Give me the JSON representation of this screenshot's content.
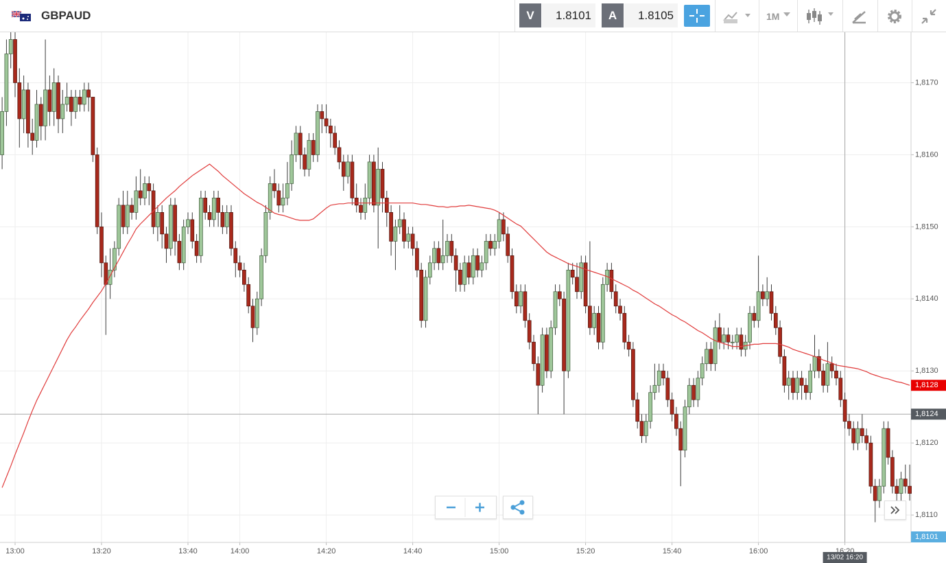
{
  "header": {
    "symbol": "GBPAUD",
    "sell": {
      "label": "V",
      "price": 1.8101
    },
    "buy": {
      "label": "A",
      "price": 1.8105
    },
    "timeframe": "1M"
  },
  "chart_data": {
    "type": "candlestick",
    "categories": [
      null,
      null,
      null,
      "13:00",
      null,
      null,
      null,
      null,
      null,
      null,
      null,
      null,
      null,
      null,
      null,
      null,
      null,
      null,
      null,
      null,
      null,
      null,
      null,
      "13:20",
      null,
      null,
      null,
      null,
      null,
      null,
      null,
      null,
      null,
      null,
      null,
      null,
      null,
      null,
      null,
      null,
      null,
      null,
      null,
      "13:40",
      null,
      null,
      null,
      null,
      null,
      null,
      null,
      null,
      null,
      null,
      null,
      "14:00",
      null,
      null,
      null,
      null,
      null,
      null,
      null,
      null,
      null,
      null,
      null,
      null,
      null,
      null,
      null,
      null,
      null,
      null,
      null,
      "14:20",
      null,
      null,
      null,
      null,
      null,
      null,
      null,
      null,
      null,
      null,
      null,
      null,
      null,
      null,
      null,
      null,
      null,
      null,
      null,
      "14:40",
      null,
      null,
      null,
      null,
      null,
      null,
      null,
      null,
      null,
      null,
      null,
      null,
      null,
      null,
      null,
      null,
      null,
      null,
      null,
      "15:00",
      null,
      null,
      null,
      null,
      null,
      null,
      null,
      null,
      null,
      null,
      null,
      null,
      null,
      null,
      null,
      null,
      null,
      null,
      null,
      "15:20",
      null,
      null,
      null,
      null,
      null,
      null,
      null,
      null,
      null,
      null,
      null,
      null,
      null,
      null,
      null,
      null,
      null,
      null,
      null,
      "15:40",
      null,
      null,
      null,
      null,
      null,
      null,
      null,
      null,
      null,
      null,
      null,
      null,
      null,
      null,
      null,
      null,
      null,
      null,
      null,
      "16:00",
      null,
      null,
      null,
      null,
      null,
      null,
      null,
      null,
      null,
      null,
      null,
      null,
      null,
      null,
      null,
      null,
      null,
      null,
      null,
      "16:20",
      null,
      null,
      null,
      null,
      null,
      null,
      null,
      null,
      null,
      null,
      null,
      null,
      null,
      null,
      null
    ],
    "open": [
      1.816,
      1.8166,
      1.8174,
      1.8176,
      1.817,
      1.8165,
      1.8169,
      1.8163,
      1.8162,
      1.8167,
      1.8164,
      1.8169,
      1.8166,
      1.817,
      1.8165,
      1.8167,
      1.8168,
      1.8166,
      1.8168,
      1.8167,
      1.8169,
      1.8168,
      1.816,
      1.815,
      1.8145,
      1.8142,
      1.8144,
      1.8147,
      1.8153,
      1.815,
      1.8153,
      1.8152,
      1.8155,
      1.8154,
      1.8156,
      1.8155,
      1.815,
      1.8152,
      1.8149,
      1.8147,
      1.8153,
      1.8148,
      1.8145,
      1.815,
      1.8151,
      1.8148,
      1.8146,
      1.8154,
      1.8152,
      1.8151,
      1.8154,
      1.8152,
      1.815,
      1.8152,
      1.8147,
      1.8145,
      1.8144,
      1.8142,
      1.8139,
      1.8136,
      1.814,
      1.8146,
      1.8152,
      1.8156,
      1.8155,
      1.8153,
      1.8154,
      1.8156,
      1.816,
      1.8163,
      1.816,
      1.8158,
      1.8162,
      1.816,
      1.8166,
      1.8165,
      1.8164,
      1.8163,
      1.8161,
      1.8159,
      1.8157,
      1.8159,
      1.8154,
      1.8153,
      1.8152,
      1.8154,
      1.8159,
      1.8153,
      1.8158,
      1.8154,
      1.8152,
      1.8148,
      1.815,
      1.8151,
      1.8148,
      1.8149,
      1.8147,
      1.8144,
      1.8137,
      1.8143,
      1.8145,
      1.8147,
      1.8145,
      1.8146,
      1.8148,
      1.8146,
      1.8144,
      1.8142,
      1.8145,
      1.8143,
      1.8146,
      1.8144,
      1.8145,
      1.8148,
      1.8147,
      1.8148,
      1.8151,
      1.8149,
      1.8146,
      1.8141,
      1.8139,
      1.8141,
      1.8137,
      1.8134,
      1.8131,
      1.8128,
      1.8135,
      1.813,
      1.8136,
      1.8141,
      1.814,
      1.813,
      1.8144,
      1.8143,
      1.8141,
      1.8145,
      1.8139,
      1.8136,
      1.8138,
      1.8134,
      1.8142,
      1.8144,
      1.8141,
      1.8139,
      1.8138,
      1.8134,
      1.8133,
      1.8126,
      1.8123,
      1.8121,
      1.8123,
      1.8127,
      1.8128,
      1.813,
      1.8129,
      1.8126,
      1.8124,
      1.8122,
      1.8119,
      1.8125,
      1.8128,
      1.8126,
      1.8129,
      1.8131,
      1.8133,
      1.8131,
      1.8136,
      1.8134,
      1.8135,
      1.8134,
      1.8134,
      1.8135,
      1.8133,
      1.8134,
      1.8138,
      1.8137,
      1.8141,
      1.814,
      1.8141,
      1.8138,
      1.8136,
      1.8132,
      1.8128,
      1.8129,
      1.8127,
      1.8129,
      1.8128,
      1.8127,
      1.813,
      1.8132,
      1.813,
      1.8128,
      1.8131,
      1.813,
      1.8129,
      1.8126,
      1.8123,
      1.8122,
      1.812,
      1.8122,
      1.8121,
      1.812,
      1.8114,
      1.8112,
      1.8114,
      1.8122,
      1.8118,
      1.8114,
      1.8113,
      1.8115,
      1.8114
    ],
    "high": [
      1.8168,
      1.8176,
      1.8177,
      1.8177,
      1.8172,
      1.8171,
      1.817,
      1.8165,
      1.8169,
      1.8168,
      1.8176,
      1.8171,
      1.8172,
      1.8171,
      1.8169,
      1.817,
      1.8169,
      1.8169,
      1.8169,
      1.817,
      1.817,
      1.8168,
      1.8161,
      1.8152,
      1.8146,
      1.8147,
      1.8148,
      1.8154,
      1.8155,
      1.8155,
      1.8154,
      1.8157,
      1.8158,
      1.8157,
      1.8157,
      1.8156,
      1.8153,
      1.8153,
      1.815,
      1.8154,
      1.8154,
      1.8149,
      1.8151,
      1.8152,
      1.8152,
      1.8149,
      1.8155,
      1.8155,
      1.8153,
      1.8155,
      1.8155,
      1.8153,
      1.8153,
      1.8153,
      1.8148,
      1.8146,
      1.8145,
      1.8143,
      1.814,
      1.8141,
      1.8147,
      1.8153,
      1.8157,
      1.8158,
      1.8156,
      1.8156,
      1.8159,
      1.8162,
      1.8164,
      1.8164,
      1.8161,
      1.8163,
      1.8163,
      1.8167,
      1.8167,
      1.8167,
      1.8165,
      1.8164,
      1.8162,
      1.816,
      1.816,
      1.816,
      1.8156,
      1.8154,
      1.8156,
      1.816,
      1.816,
      1.8161,
      1.8159,
      1.8155,
      1.8153,
      1.8151,
      1.8153,
      1.8152,
      1.815,
      1.815,
      1.8148,
      1.8145,
      1.8144,
      1.8146,
      1.8148,
      1.8148,
      1.8151,
      1.8149,
      1.8149,
      1.8147,
      1.8145,
      1.8146,
      1.8146,
      1.8147,
      1.8147,
      1.8146,
      1.8149,
      1.8149,
      1.8149,
      1.8152,
      1.8152,
      1.815,
      1.8147,
      1.8142,
      1.8142,
      1.8142,
      1.8138,
      1.8135,
      1.8132,
      1.8136,
      1.8136,
      1.8137,
      1.8142,
      1.8142,
      1.8141,
      1.8145,
      1.8145,
      1.8145,
      1.8146,
      1.8146,
      1.8148,
      1.8139,
      1.8139,
      1.8143,
      1.8145,
      1.8145,
      1.8142,
      1.814,
      1.8139,
      1.8135,
      1.8134,
      1.8127,
      1.8124,
      1.8124,
      1.8128,
      1.8131,
      1.8131,
      1.8131,
      1.813,
      1.8127,
      1.8125,
      1.8123,
      1.8126,
      1.8129,
      1.8129,
      1.813,
      1.8132,
      1.8134,
      1.8134,
      1.8137,
      1.8138,
      1.8136,
      1.8136,
      1.8135,
      1.8136,
      1.8136,
      1.8135,
      1.8139,
      1.8139,
      1.8146,
      1.8142,
      1.8143,
      1.8142,
      1.8139,
      1.8137,
      1.8133,
      1.813,
      1.813,
      1.813,
      1.813,
      1.8129,
      1.8131,
      1.8135,
      1.8133,
      1.8131,
      1.8134,
      1.8132,
      1.8131,
      1.813,
      1.8127,
      1.8124,
      1.8123,
      1.8123,
      1.8124,
      1.8122,
      1.8121,
      1.8115,
      1.8115,
      1.8123,
      1.8123,
      1.8119,
      1.8115,
      1.8116,
      1.8117,
      1.8117
    ],
    "low": [
      1.8158,
      1.8164,
      1.8172,
      1.8168,
      1.8161,
      1.8163,
      1.8161,
      1.816,
      1.8161,
      1.8162,
      1.8162,
      1.8164,
      1.8164,
      1.8163,
      1.8163,
      1.8166,
      1.8164,
      1.8165,
      1.8166,
      1.8166,
      1.8166,
      1.8159,
      1.8149,
      1.8143,
      1.8135,
      1.814,
      1.8143,
      1.8146,
      1.8149,
      1.8149,
      1.8151,
      1.8151,
      1.8153,
      1.8153,
      1.8153,
      1.8149,
      1.8148,
      1.8147,
      1.8145,
      1.8146,
      1.8146,
      1.8144,
      1.8144,
      1.8149,
      1.8147,
      1.8145,
      1.8145,
      1.8151,
      1.815,
      1.815,
      1.815,
      1.8149,
      1.8149,
      1.8146,
      1.8143,
      1.8143,
      1.8141,
      1.8138,
      1.8134,
      1.8135,
      1.8139,
      1.8145,
      1.8151,
      1.8154,
      1.8152,
      1.8152,
      1.8153,
      1.8155,
      1.8159,
      1.8158,
      1.8157,
      1.8157,
      1.8159,
      1.8159,
      1.8163,
      1.8163,
      1.8161,
      1.816,
      1.8158,
      1.8155,
      1.8156,
      1.8153,
      1.8152,
      1.8151,
      1.8151,
      1.8153,
      1.8152,
      1.8147,
      1.8152,
      1.815,
      1.8146,
      1.8144,
      1.8149,
      1.8147,
      1.8147,
      1.8146,
      1.8143,
      1.8136,
      1.8136,
      1.8142,
      1.8144,
      1.8144,
      1.8144,
      1.8145,
      1.8145,
      1.8141,
      1.8141,
      1.8141,
      1.8142,
      1.8142,
      1.8143,
      1.8143,
      1.8144,
      1.8146,
      1.8146,
      1.8147,
      1.8148,
      1.8145,
      1.814,
      1.8138,
      1.8138,
      1.8136,
      1.8133,
      1.813,
      1.8124,
      1.8127,
      1.8129,
      1.8129,
      1.8135,
      1.8139,
      1.8124,
      1.8129,
      1.8142,
      1.814,
      1.814,
      1.8138,
      1.8135,
      1.8135,
      1.8133,
      1.8133,
      1.8141,
      1.814,
      1.8138,
      1.8137,
      1.8133,
      1.8132,
      1.8125,
      1.8122,
      1.812,
      1.812,
      1.8122,
      1.8126,
      1.8127,
      1.8128,
      1.8125,
      1.8123,
      1.8121,
      1.8114,
      1.8118,
      1.8124,
      1.8125,
      1.8125,
      1.8128,
      1.813,
      1.813,
      1.813,
      1.8133,
      1.8133,
      1.8133,
      1.8133,
      1.8133,
      1.8132,
      1.8132,
      1.8133,
      1.8136,
      1.8136,
      1.8139,
      1.8139,
      1.8137,
      1.8135,
      1.8131,
      1.8127,
      1.8126,
      1.8126,
      1.8126,
      1.8126,
      1.8126,
      1.8126,
      1.8129,
      1.8129,
      1.8127,
      1.8127,
      1.8129,
      1.8128,
      1.8125,
      1.8122,
      1.8121,
      1.8119,
      1.8119,
      1.812,
      1.8119,
      1.8113,
      1.8109,
      1.8111,
      1.8113,
      1.8117,
      1.8113,
      1.8112,
      1.8112,
      1.8113,
      1.8112
    ],
    "close": [
      1.8166,
      1.8174,
      1.8176,
      1.817,
      1.8165,
      1.8169,
      1.8163,
      1.8162,
      1.8167,
      1.8164,
      1.8169,
      1.8166,
      1.817,
      1.8165,
      1.8167,
      1.8168,
      1.8166,
      1.8168,
      1.8167,
      1.8169,
      1.8168,
      1.816,
      1.815,
      1.8145,
      1.8142,
      1.8144,
      1.8147,
      1.8153,
      1.815,
      1.8153,
      1.8152,
      1.8155,
      1.8154,
      1.8156,
      1.8155,
      1.815,
      1.8152,
      1.8149,
      1.8147,
      1.8153,
      1.8148,
      1.8145,
      1.815,
      1.8151,
      1.8148,
      1.8146,
      1.8154,
      1.8152,
      1.8151,
      1.8154,
      1.8152,
      1.815,
      1.8152,
      1.8147,
      1.8145,
      1.8144,
      1.8142,
      1.8139,
      1.8136,
      1.814,
      1.8146,
      1.8152,
      1.8156,
      1.8155,
      1.8153,
      1.8154,
      1.8156,
      1.816,
      1.8163,
      1.816,
      1.8158,
      1.8162,
      1.816,
      1.8166,
      1.8165,
      1.8164,
      1.8163,
      1.8161,
      1.8159,
      1.8157,
      1.8159,
      1.8154,
      1.8153,
      1.8152,
      1.8154,
      1.8159,
      1.8153,
      1.8158,
      1.8154,
      1.8152,
      1.8148,
      1.815,
      1.8151,
      1.8148,
      1.8149,
      1.8147,
      1.8144,
      1.8137,
      1.8143,
      1.8145,
      1.8147,
      1.8145,
      1.8146,
      1.8148,
      1.8146,
      1.8144,
      1.8142,
      1.8145,
      1.8143,
      1.8146,
      1.8144,
      1.8145,
      1.8148,
      1.8147,
      1.8148,
      1.8151,
      1.8149,
      1.8146,
      1.8141,
      1.8139,
      1.8141,
      1.8137,
      1.8134,
      1.8131,
      1.8128,
      1.8135,
      1.813,
      1.8136,
      1.8141,
      1.814,
      1.813,
      1.8144,
      1.8143,
      1.8141,
      1.8145,
      1.8139,
      1.8136,
      1.8138,
      1.8134,
      1.8142,
      1.8144,
      1.8141,
      1.8139,
      1.8138,
      1.8134,
      1.8133,
      1.8126,
      1.8123,
      1.8121,
      1.8123,
      1.8127,
      1.8128,
      1.813,
      1.8129,
      1.8126,
      1.8124,
      1.8122,
      1.8119,
      1.8125,
      1.8128,
      1.8126,
      1.8129,
      1.8131,
      1.8133,
      1.8131,
      1.8136,
      1.8134,
      1.8135,
      1.8134,
      1.8134,
      1.8135,
      1.8133,
      1.8134,
      1.8138,
      1.8137,
      1.8141,
      1.814,
      1.8141,
      1.8138,
      1.8136,
      1.8132,
      1.8128,
      1.8129,
      1.8127,
      1.8129,
      1.8128,
      1.8127,
      1.813,
      1.8132,
      1.813,
      1.8128,
      1.8131,
      1.813,
      1.8129,
      1.8126,
      1.8123,
      1.8122,
      1.812,
      1.8122,
      1.8121,
      1.812,
      1.8114,
      1.8112,
      1.8114,
      1.8122,
      1.8118,
      1.8114,
      1.8113,
      1.8115,
      1.8114,
      1.8113
    ],
    "up_color": "#9fc79a",
    "down_color": "#a8291c",
    "wick_color": "#3a3a3a",
    "moving_average": {
      "color": "#e03a3a",
      "values": [
        1.81138,
        1.81153,
        1.81168,
        1.81184,
        1.81199,
        1.81214,
        1.8123,
        1.81245,
        1.81259,
        1.81271,
        1.81283,
        1.81295,
        1.81307,
        1.81319,
        1.81331,
        1.81343,
        1.81353,
        1.81361,
        1.8137,
        1.81378,
        1.81386,
        1.81395,
        1.81403,
        1.81411,
        1.81421,
        1.81432,
        1.81443,
        1.81454,
        1.81465,
        1.81476,
        1.81486,
        1.81497,
        1.81504,
        1.8151,
        1.81516,
        1.81522,
        1.81528,
        1.81534,
        1.8154,
        1.81545,
        1.8155,
        1.81556,
        1.81561,
        1.81566,
        1.81571,
        1.81575,
        1.81579,
        1.81583,
        1.81587,
        1.81582,
        1.81577,
        1.81571,
        1.81566,
        1.81561,
        1.81556,
        1.81551,
        1.81546,
        1.81542,
        1.81538,
        1.81534,
        1.81531,
        1.81527,
        1.81523,
        1.81519,
        1.81517,
        1.81516,
        1.81514,
        1.81512,
        1.8151,
        1.81509,
        1.81509,
        1.81509,
        1.81511,
        1.81516,
        1.81521,
        1.81526,
        1.8153,
        1.81531,
        1.81532,
        1.81532,
        1.81533,
        1.81533,
        1.81533,
        1.81533,
        1.81533,
        1.81533,
        1.81533,
        1.81533,
        1.81533,
        1.81533,
        1.81533,
        1.81533,
        1.81533,
        1.81533,
        1.81533,
        1.81533,
        1.81532,
        1.81531,
        1.81531,
        1.8153,
        1.81529,
        1.81528,
        1.81528,
        1.81527,
        1.81528,
        1.81528,
        1.81529,
        1.81529,
        1.8153,
        1.81529,
        1.81528,
        1.81527,
        1.81526,
        1.81525,
        1.81523,
        1.8152,
        1.81516,
        1.81512,
        1.81508,
        1.81504,
        1.81501,
        1.81495,
        1.81489,
        1.81483,
        1.81477,
        1.81471,
        1.81465,
        1.81461,
        1.81458,
        1.81455,
        1.81452,
        1.81449,
        1.81447,
        1.81445,
        1.81443,
        1.81441,
        1.81439,
        1.81437,
        1.81435,
        1.81433,
        1.81431,
        1.81428,
        1.81425,
        1.81422,
        1.81419,
        1.81416,
        1.81412,
        1.81409,
        1.81405,
        1.81401,
        1.81397,
        1.81393,
        1.8139,
        1.81386,
        1.81382,
        1.81378,
        1.81375,
        1.81371,
        1.81368,
        1.81364,
        1.8136,
        1.81356,
        1.81353,
        1.81349,
        1.81345,
        1.81342,
        1.8134,
        1.81338,
        1.81336,
        1.81334,
        1.81334,
        1.81334,
        1.81335,
        1.81336,
        1.81337,
        1.81337,
        1.81338,
        1.81338,
        1.81338,
        1.81338,
        1.81337,
        1.81335,
        1.81333,
        1.8133,
        1.81328,
        1.81326,
        1.81324,
        1.81322,
        1.8132,
        1.81318,
        1.81315,
        1.81313,
        1.81311,
        1.81308,
        1.81307,
        1.81306,
        1.81305,
        1.81304,
        1.81303,
        1.81301,
        1.81299,
        1.81296,
        1.81294,
        1.81292,
        1.8129,
        1.81289,
        1.81287,
        1.81285,
        1.81284,
        1.81282,
        1.8128
      ]
    },
    "ylim": [
      1.81062,
      1.8177
    ],
    "yticks": [
      {
        "value": 1.811,
        "label": "1,8110"
      },
      {
        "value": 1.812,
        "label": "1,8120"
      },
      {
        "value": 1.813,
        "label": "1,8130"
      },
      {
        "value": 1.814,
        "label": "1,8140"
      },
      {
        "value": 1.815,
        "label": "1,8150"
      },
      {
        "value": 1.816,
        "label": "1,8160"
      },
      {
        "value": 1.817,
        "label": "1,8170"
      }
    ],
    "grid": true,
    "ma_label": {
      "value": 1.8128,
      "label": "1,8128"
    },
    "crosshair": {
      "price": {
        "value": 1.8124,
        "label": "1,8124"
      },
      "time_label": "13/02 16:20"
    },
    "last_price": {
      "value": 1.8101,
      "label": "1,8101"
    }
  }
}
